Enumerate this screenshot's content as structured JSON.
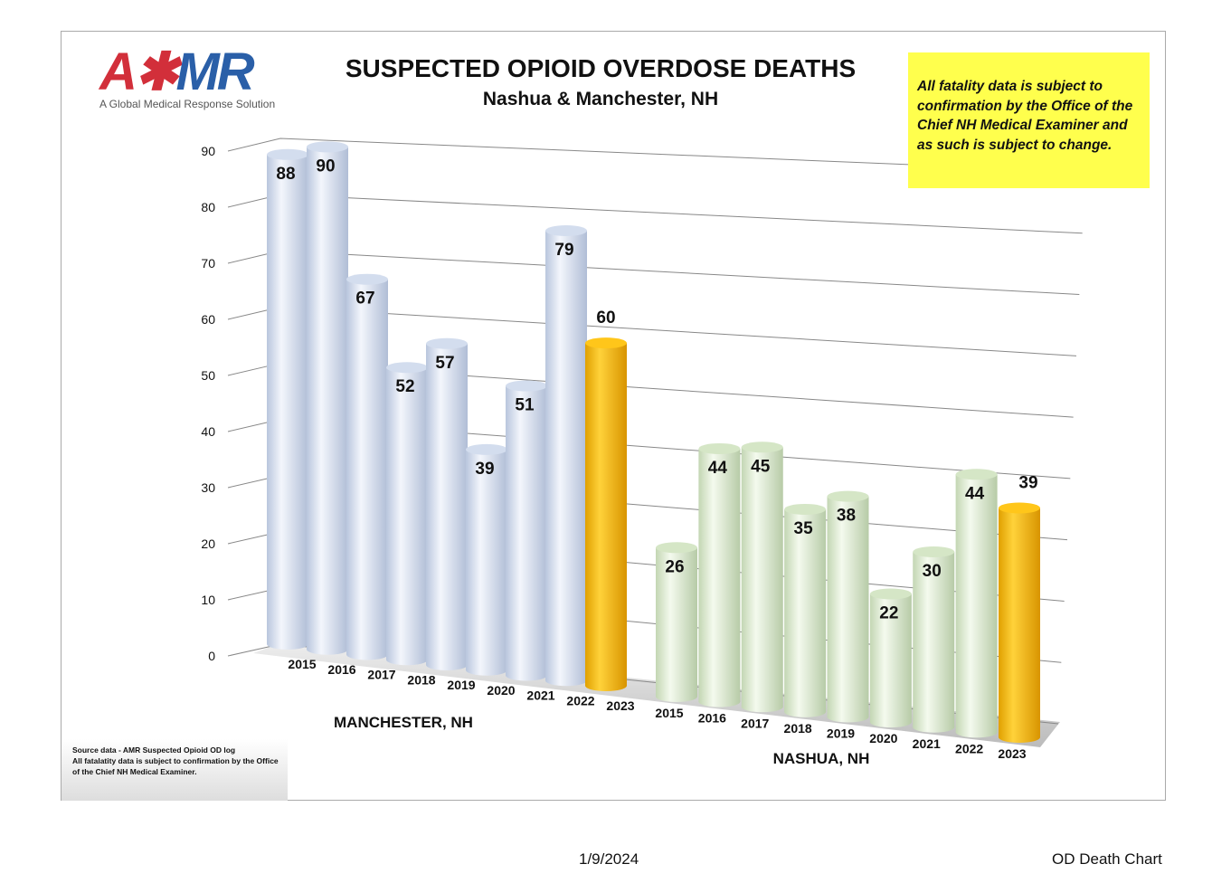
{
  "logo": {
    "text": "AMR",
    "tagline": "A Global Medical Response Solution"
  },
  "note": "All fatality data is subject to confirmation by the Office of the Chief NH Medical Examiner and as such is subject to change.",
  "source": {
    "line1": "Source data - AMR Suspected Opioid OD log",
    "line2": "All fatalatity data is subject to confirmation by the Office of the Chief NH Medical Examiner."
  },
  "footer": {
    "date": "1/9/2024",
    "name": "OD Death Chart"
  },
  "colors": {
    "manchester": "#dde6f6",
    "nashua": "#e4f2d8",
    "current": "#f7b900",
    "note_bg": "#ffff4d"
  },
  "chart_data": {
    "type": "bar",
    "title": "SUSPECTED OPIOID OVERDOSE DEATHS",
    "subtitle": "Nashua & Manchester, NH",
    "ylim": [
      0,
      90
    ],
    "yticks": [
      "0",
      "10",
      "20",
      "30",
      "40",
      "50",
      "60",
      "70",
      "80",
      "90"
    ],
    "categories": [
      "2015",
      "2016",
      "2017",
      "2018",
      "2019",
      "2020",
      "2021",
      "2022",
      "2023"
    ],
    "series": [
      {
        "name": "MANCHESTER, NH",
        "values": [
          88,
          90,
          67,
          52,
          57,
          39,
          51,
          79,
          60
        ]
      },
      {
        "name": "NASHUA, NH",
        "values": [
          26,
          44,
          45,
          35,
          38,
          22,
          30,
          44,
          39
        ]
      }
    ]
  }
}
